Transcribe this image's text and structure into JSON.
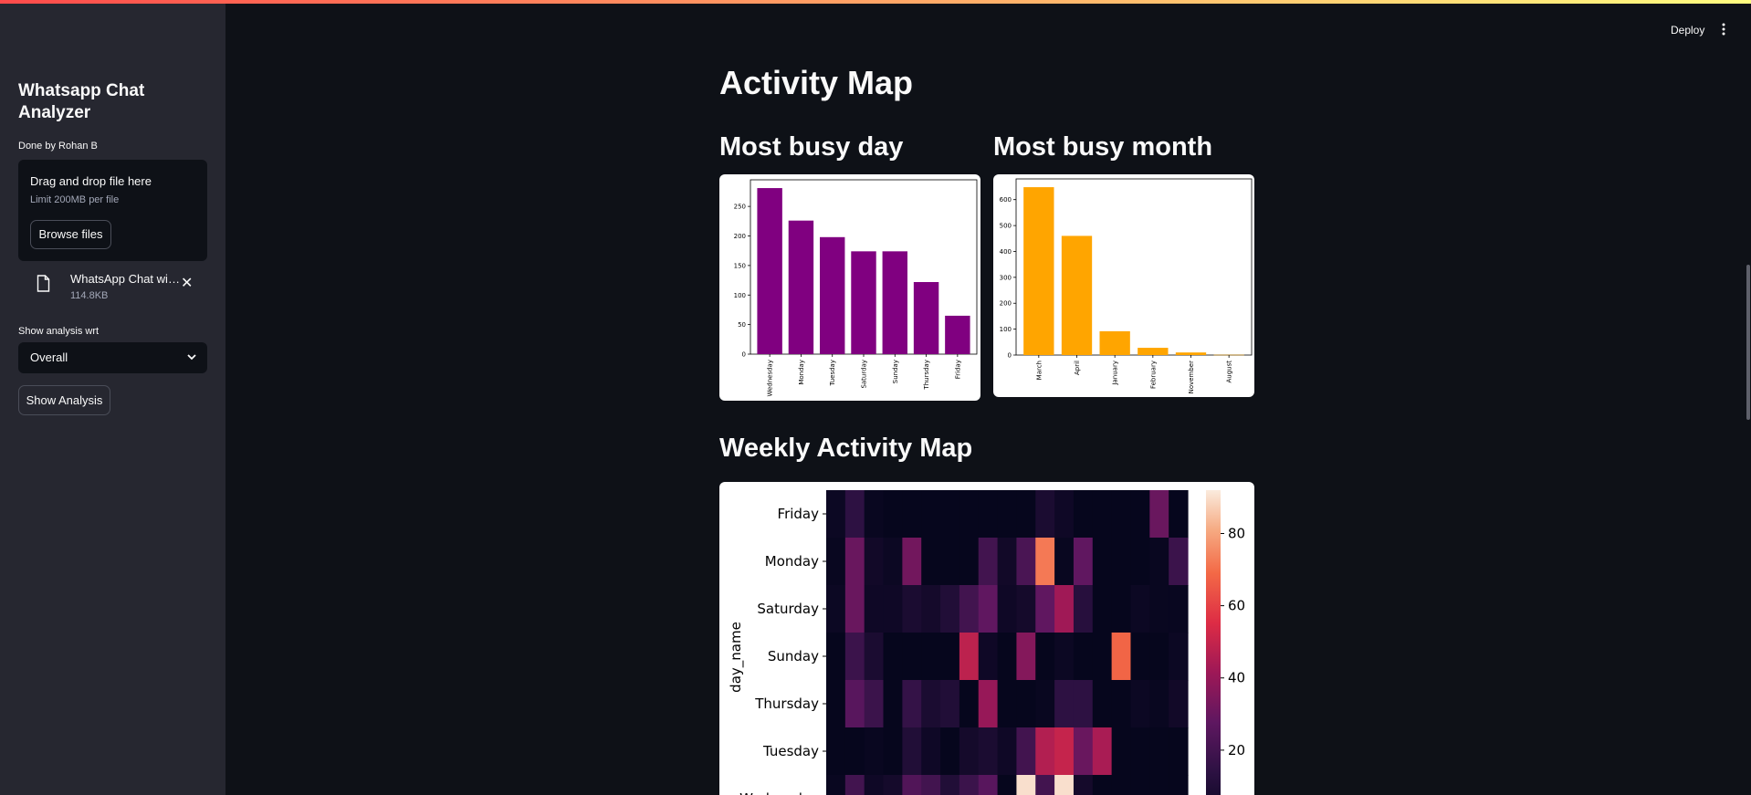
{
  "header": {
    "deploy_label": "Deploy",
    "menu_icon": "more-vert-icon"
  },
  "sidebar": {
    "title": "Whatsapp Chat Analyzer",
    "author": "Done by Rohan B",
    "uploader": {
      "drop_title": "Drag and drop file here",
      "limit": "Limit 200MB per file",
      "browse_label": "Browse files"
    },
    "file": {
      "name": "WhatsApp Chat wit...",
      "size": "114.8KB",
      "icon": "file-icon",
      "close_icon": "close-icon"
    },
    "select": {
      "label": "Show analysis wrt",
      "value": "Overall",
      "icon": "chevron-down-icon"
    },
    "show_button": "Show Analysis"
  },
  "main": {
    "activity_title": "Activity Map",
    "busy_day_title": "Most busy day",
    "busy_month_title": "Most busy month",
    "weekly_title": "Weekly Activity Map"
  },
  "colors": {
    "accent_gradient": [
      "#ff4b4b",
      "#fffd80"
    ],
    "day_bar": "#800080",
    "month_bar": "#ffa500"
  },
  "chart_data": [
    {
      "type": "bar",
      "categories": [
        "Wednesday",
        "Monday",
        "Tuesday",
        "Saturday",
        "Sunday",
        "Thursday",
        "Friday"
      ],
      "values": [
        281,
        226,
        198,
        174,
        174,
        122,
        65
      ],
      "yticks": [
        0,
        50,
        100,
        150,
        200,
        250
      ],
      "ylim": [
        0,
        295
      ],
      "color": "#800080"
    },
    {
      "type": "bar",
      "categories": [
        "March",
        "April",
        "January",
        "February",
        "November",
        "August"
      ],
      "values": [
        648,
        460,
        92,
        28,
        10,
        1
      ],
      "yticks": [
        0,
        100,
        200,
        300,
        400,
        500,
        600
      ],
      "ylim": [
        0,
        680
      ],
      "color": "#ffa500"
    },
    {
      "type": "heatmap",
      "ylabel": "day_name",
      "rows": [
        "Friday",
        "Monday",
        "Saturday",
        "Sunday",
        "Thursday",
        "Tuesday",
        "Wednesday"
      ],
      "values": [
        [
          3,
          14,
          2,
          1,
          1,
          1,
          1,
          1,
          1,
          1,
          1,
          8,
          4,
          1,
          1,
          1,
          1,
          30,
          1
        ],
        [
          2,
          30,
          5,
          3,
          32,
          1,
          1,
          1,
          20,
          5,
          22,
          72,
          2,
          28,
          1,
          1,
          1,
          2,
          18
        ],
        [
          3,
          30,
          4,
          4,
          8,
          6,
          10,
          20,
          28,
          4,
          6,
          28,
          42,
          12,
          1,
          1,
          3,
          2,
          2
        ],
        [
          1,
          18,
          8,
          1,
          1,
          1,
          1,
          48,
          4,
          1,
          36,
          1,
          3,
          1,
          1,
          68,
          1,
          1,
          3
        ],
        [
          1,
          26,
          18,
          1,
          16,
          8,
          10,
          1,
          40,
          1,
          1,
          2,
          14,
          14,
          1,
          1,
          3,
          2,
          5
        ],
        [
          1,
          1,
          2,
          1,
          10,
          4,
          1,
          6,
          8,
          4,
          20,
          46,
          50,
          30,
          44,
          1,
          1,
          1,
          1
        ],
        [
          2,
          20,
          4,
          6,
          24,
          20,
          10,
          18,
          26,
          1,
          90,
          20,
          90,
          6,
          1,
          1,
          1,
          1,
          1
        ]
      ],
      "colorbar_ticks": [
        20,
        40,
        60,
        80
      ],
      "vmin": 0,
      "vmax": 92
    }
  ]
}
